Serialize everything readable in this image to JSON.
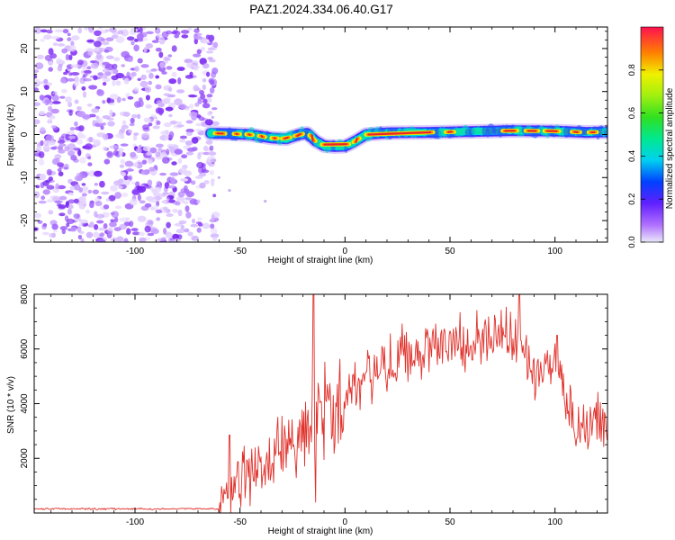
{
  "title": "PAZ1.2024.334.06.40.G17",
  "colors": {
    "snr_line": "#e0302a",
    "axes": "#000000",
    "noise_purple": "#7a2cf0",
    "track_core": "#e8242a"
  },
  "chart_data": [
    {
      "type": "heatmap",
      "xlabel": "Height of straight line (km)",
      "ylabel": "Frequency (Hz)",
      "xlim": [
        -148,
        125
      ],
      "ylim": [
        -25,
        25
      ],
      "xticks": [
        -100,
        -50,
        0,
        50,
        100
      ],
      "yticks": [
        -20,
        -10,
        0,
        10,
        20
      ],
      "noise_region_x": [
        -148,
        -64
      ],
      "ridge": {
        "x": [
          -64,
          -55,
          -45,
          -35,
          -28,
          -22,
          -18,
          -14,
          -10,
          -5,
          0,
          3,
          6,
          10,
          20,
          40,
          60,
          80,
          100,
          115,
          125
        ],
        "freq": [
          0.3,
          0.2,
          0.0,
          -0.8,
          -1.0,
          0.0,
          0.3,
          -1.5,
          -2.6,
          -2.8,
          -2.7,
          -2.0,
          -1.2,
          0.0,
          0.4,
          0.5,
          0.7,
          0.9,
          0.8,
          0.5,
          0.6
        ]
      },
      "colorbar": {
        "label": "Normalized spectral amplitude",
        "range": [
          0,
          1
        ],
        "ticks": [
          "0.0",
          "0.2",
          "0.4",
          "0.6",
          "0.8"
        ]
      }
    },
    {
      "type": "line",
      "xlabel": "Height of straight line (km)",
      "ylabel": "SNR (10 * v/v)",
      "xlim": [
        -148,
        125
      ],
      "ylim": [
        0,
        8000
      ],
      "xticks": [
        -100,
        -50,
        0,
        50,
        100
      ],
      "yticks": [
        2000,
        4000,
        6000,
        8000
      ],
      "envelope": {
        "x": [
          -148,
          -60,
          -57,
          -50,
          -40,
          -30,
          -20,
          -10,
          0,
          10,
          20,
          30,
          40,
          50,
          60,
          70,
          80,
          85,
          90,
          95,
          100,
          103,
          106,
          110,
          115,
          125
        ],
        "y": [
          150,
          150,
          700,
          1200,
          1700,
          2300,
          3000,
          3700,
          4300,
          4900,
          5500,
          5900,
          6100,
          6200,
          6300,
          6400,
          6500,
          5800,
          5000,
          5200,
          5600,
          5500,
          3600,
          3400,
          3300,
          3300
        ]
      },
      "spikes": [
        {
          "x": -55,
          "y": 2850
        },
        {
          "x": -15,
          "y": 8150
        },
        {
          "x": -14,
          "y": 400
        },
        {
          "x": 83,
          "y": 8050
        },
        {
          "x": 101,
          "y": 6500
        }
      ]
    }
  ]
}
